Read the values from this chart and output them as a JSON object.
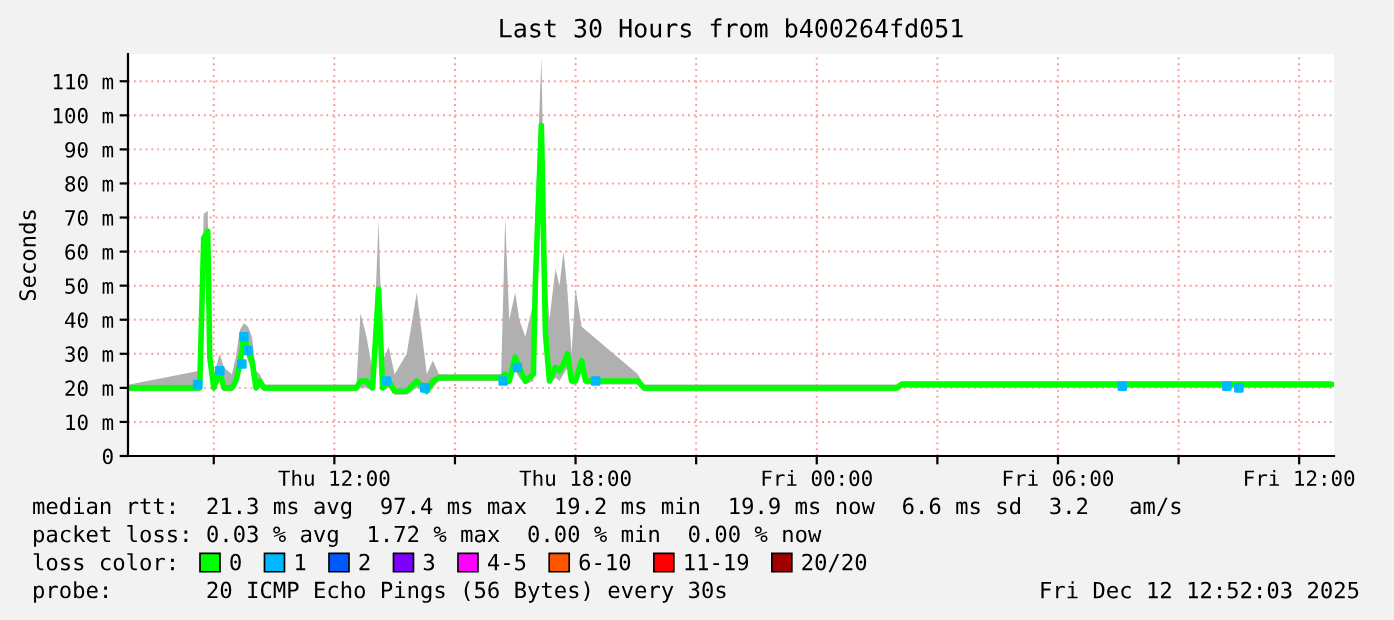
{
  "chart_data": {
    "type": "line",
    "title": "Last 30 Hours from b400264fd051",
    "ylabel": "Seconds",
    "xlim": [
      "2025-12-11T06:52",
      "2025-12-12T12:52"
    ],
    "ylim": [
      0,
      118
    ],
    "xticks": [
      {
        "value": "2025-12-11T09:00",
        "label": null
      },
      {
        "value": "2025-12-11T12:00",
        "label": "Thu 12:00"
      },
      {
        "value": "2025-12-11T15:00",
        "label": null
      },
      {
        "value": "2025-12-11T18:00",
        "label": "Thu 18:00"
      },
      {
        "value": "2025-12-11T21:00",
        "label": null
      },
      {
        "value": "2025-12-12T00:00",
        "label": "Fri 00:00"
      },
      {
        "value": "2025-12-12T03:00",
        "label": null
      },
      {
        "value": "2025-12-12T06:00",
        "label": "Fri 06:00"
      },
      {
        "value": "2025-12-12T09:00",
        "label": null
      },
      {
        "value": "2025-12-12T12:00",
        "label": "Fri 12:00"
      }
    ],
    "yticks": [
      0,
      {
        "value": 10,
        "label": "10 m"
      },
      {
        "value": 20,
        "label": "20 m"
      },
      {
        "value": 30,
        "label": "30 m"
      },
      {
        "value": 40,
        "label": "40 m"
      },
      {
        "value": 50,
        "label": "50 m"
      },
      {
        "value": 60,
        "label": "60 m"
      },
      {
        "value": 70,
        "label": "70 m"
      },
      {
        "value": 80,
        "label": "80 m"
      },
      {
        "value": 90,
        "label": "90 m"
      },
      {
        "value": 100,
        "label": "100 m"
      },
      {
        "value": 110,
        "label": "110 m"
      }
    ],
    "grid": true,
    "legend": "bottom",
    "legend_title": "loss color:",
    "series": [
      {
        "name": "0",
        "color": "#00ff00",
        "x": [
          "2025-12-11T06:54",
          "2025-12-11T08:39",
          "2025-12-11T08:45",
          "2025-12-11T08:51",
          "2025-12-11T08:54",
          "2025-12-11T09:00",
          "2025-12-11T09:09",
          "2025-12-11T09:15",
          "2025-12-11T09:27",
          "2025-12-11T09:33",
          "2025-12-11T09:39",
          "2025-12-11T09:45",
          "2025-12-11T09:51",
          "2025-12-11T09:57",
          "2025-12-11T10:03",
          "2025-12-11T10:09",
          "2025-12-11T10:15",
          "2025-12-11T12:33",
          "2025-12-11T12:39",
          "2025-12-11T12:48",
          "2025-12-11T12:57",
          "2025-12-11T13:06",
          "2025-12-11T13:12",
          "2025-12-11T13:21",
          "2025-12-11T13:30",
          "2025-12-11T13:48",
          "2025-12-11T14:03",
          "2025-12-11T14:18",
          "2025-12-11T14:27",
          "2025-12-11T14:36",
          "2025-12-11T16:09",
          "2025-12-11T16:15",
          "2025-12-11T16:21",
          "2025-12-11T16:30",
          "2025-12-11T16:36",
          "2025-12-11T16:45",
          "2025-12-11T16:57",
          "2025-12-11T17:00",
          "2025-12-11T17:09",
          "2025-12-11T17:15",
          "2025-12-11T17:21",
          "2025-12-11T17:30",
          "2025-12-11T17:36",
          "2025-12-11T17:42",
          "2025-12-11T17:48",
          "2025-12-11T17:54",
          "2025-12-11T18:00",
          "2025-12-11T18:09",
          "2025-12-11T18:15",
          "2025-12-11T19:33",
          "2025-12-11T19:42",
          "2025-12-11T22:51",
          "2025-12-12T02:00",
          "2025-12-12T02:06",
          "2025-12-12T12:48"
        ],
        "values": [
          20,
          20,
          64,
          66,
          29,
          20,
          25,
          20,
          20,
          22,
          27,
          35,
          31,
          28,
          20,
          22,
          20,
          20,
          22,
          22,
          20,
          49,
          20,
          22,
          19,
          19,
          22,
          19,
          22,
          23,
          23,
          24,
          22,
          29,
          26,
          22,
          24,
          51,
          97,
          36,
          22,
          26,
          25,
          27,
          30,
          22,
          22,
          28,
          22,
          22,
          20,
          20,
          20,
          21,
          21
        ],
        "lower": [
          19,
          19,
          62,
          64,
          27,
          19,
          22,
          19,
          19,
          20,
          25,
          32,
          28,
          25,
          19,
          20,
          19,
          19,
          20,
          20,
          19,
          45,
          19,
          20,
          18,
          18,
          20,
          18,
          20,
          22,
          22,
          22,
          21,
          25,
          23,
          21,
          22,
          45,
          92,
          32,
          21,
          23,
          22,
          24,
          26,
          21,
          21,
          25,
          21,
          21,
          19,
          19,
          19,
          20,
          20
        ],
        "upper": [
          21,
          25,
          71,
          72,
          36,
          24,
          30,
          26,
          24,
          29,
          37,
          39,
          38,
          35,
          25,
          24,
          21,
          21,
          42,
          35,
          25,
          69,
          28,
          32,
          24,
          30,
          48,
          24,
          28,
          24,
          24,
          70,
          40,
          48,
          40,
          35,
          45,
          70,
          117,
          56,
          40,
          55,
          50,
          60,
          48,
          30,
          49,
          38,
          37,
          24,
          21,
          21,
          21,
          22,
          22
        ]
      },
      {
        "name": "1",
        "color": "#00b8ff",
        "type": "scatter",
        "x": [
          "2025-12-11T08:36",
          "2025-12-11T09:09",
          "2025-12-11T09:42",
          "2025-12-11T09:45",
          "2025-12-11T09:51",
          "2025-12-11T13:18",
          "2025-12-11T14:15",
          "2025-12-11T16:12",
          "2025-12-11T16:33",
          "2025-12-11T18:30",
          "2025-12-12T07:36",
          "2025-12-12T10:12",
          "2025-12-12T10:30"
        ],
        "values": [
          21,
          25,
          27,
          35,
          31,
          22,
          20,
          22,
          26,
          22,
          20.5,
          20.5,
          20
        ]
      },
      {
        "name": "2",
        "color": "#0059ff",
        "type": "scatter"
      },
      {
        "name": "3",
        "color": "#7e00ff",
        "type": "scatter"
      },
      {
        "name": "4-5",
        "color": "#ff00ff",
        "type": "scatter"
      },
      {
        "name": "6-10",
        "color": "#ff5500",
        "type": "scatter"
      },
      {
        "name": "11-19",
        "color": "#ff0000",
        "type": "scatter"
      },
      {
        "name": "20/20",
        "color": "#a10000",
        "type": "scatter"
      }
    ],
    "annotations": [
      "median rtt:  21.3 ms avg  97.4 ms max  19.2 ms min  19.9 ms now  6.6 ms sd  3.2   am/s",
      "packet loss: 0.03 % avg  1.72 % max  0.00 % min  0.00 % now",
      "probe:       20 ICMP Echo Pings (56 Bytes) every 30s",
      "Fri Dec 12 12:52:03 2025"
    ]
  }
}
